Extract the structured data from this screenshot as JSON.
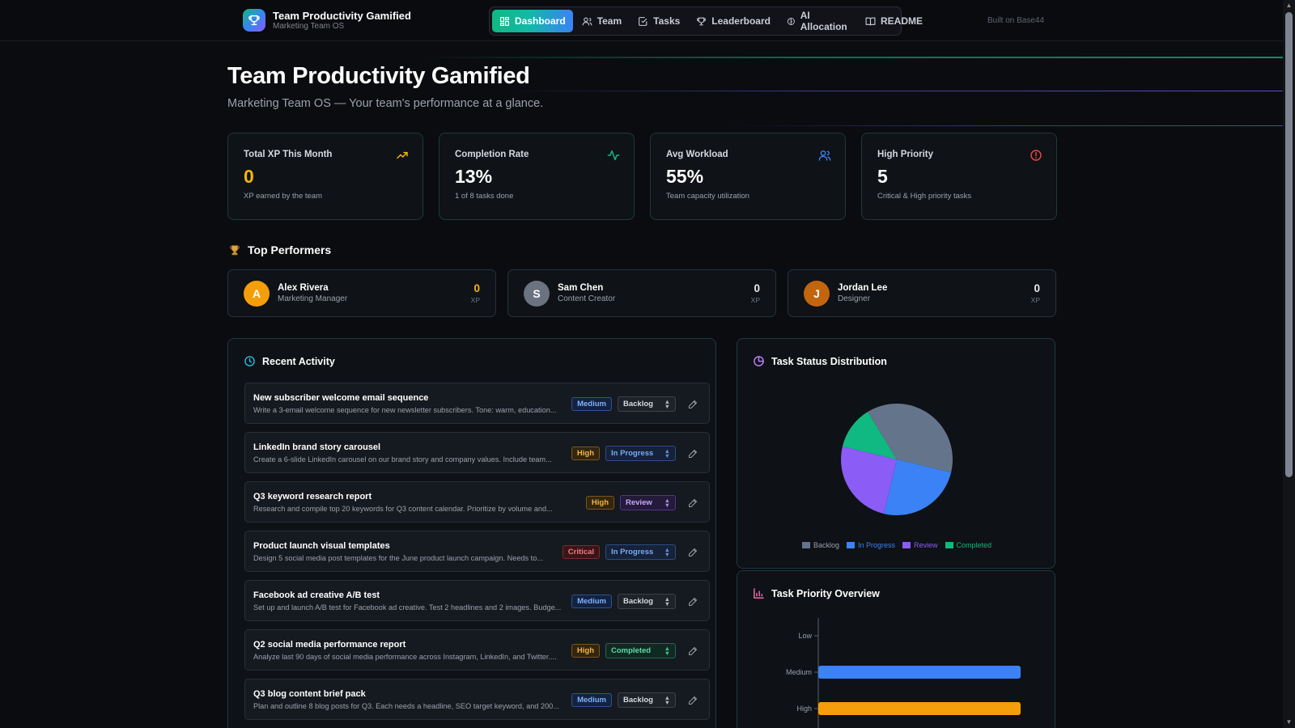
{
  "app": {
    "title": "Team Productivity Gamified",
    "subtitle": "Marketing Team OS",
    "built_on": "Built on Base44"
  },
  "nav": [
    {
      "label": "Dashboard",
      "icon": "dashboard-icon",
      "active": true
    },
    {
      "label": "Team",
      "icon": "users-icon"
    },
    {
      "label": "Tasks",
      "icon": "checkbox-icon"
    },
    {
      "label": "Leaderboard",
      "icon": "trophy-icon"
    },
    {
      "label": "AI Allocation",
      "icon": "brain-icon"
    },
    {
      "label": "README",
      "icon": "book-icon"
    }
  ],
  "header": {
    "title": "Team Productivity Gamified",
    "subtitle": "Marketing Team OS — Your team's performance at a glance."
  },
  "stats": [
    {
      "label": "Total XP This Month",
      "value": "0",
      "desc": "XP earned by the team",
      "icon": "trending-up-icon",
      "color": "#f5b50b"
    },
    {
      "label": "Completion Rate",
      "value": "13%",
      "desc": "1 of 8 tasks done",
      "icon": "activity-icon",
      "color": "#10b981"
    },
    {
      "label": "Avg Workload",
      "value": "55%",
      "desc": "Team capacity utilization",
      "icon": "users-icon",
      "color": "#3b82f6"
    },
    {
      "label": "High Priority",
      "value": "5",
      "desc": "Critical & High priority tasks",
      "icon": "alert-circle-icon",
      "color": "#ef4444"
    }
  ],
  "top_performers": {
    "title": "Top Performers",
    "items": [
      {
        "initial": "A",
        "name": "Alex Rivera",
        "role": "Marketing Manager",
        "xp": "0",
        "unit": "XP",
        "avatar_color": "#f59e0b",
        "xp_color": "#f5b50b"
      },
      {
        "initial": "S",
        "name": "Sam Chen",
        "role": "Content Creator",
        "xp": "0",
        "unit": "XP",
        "avatar_color": "#6b7280",
        "xp_color": "#ffffff"
      },
      {
        "initial": "J",
        "name": "Jordan Lee",
        "role": "Designer",
        "xp": "0",
        "unit": "XP",
        "avatar_color": "#c2650f",
        "xp_color": "#ffffff"
      }
    ]
  },
  "recent_activity": {
    "title": "Recent Activity",
    "tasks": [
      {
        "title": "New subscriber welcome email sequence",
        "desc": "Write a 3-email welcome sequence for new newsletter subscribers. Tone: warm, education...",
        "priority": "Medium",
        "status": "Backlog"
      },
      {
        "title": "LinkedIn brand story carousel",
        "desc": "Create a 6-slide LinkedIn carousel on our brand story and company values. Include team...",
        "priority": "High",
        "status": "In Progress"
      },
      {
        "title": "Q3 keyword research report",
        "desc": "Research and compile top 20 keywords for Q3 content calendar. Prioritize by volume and...",
        "priority": "High",
        "status": "Review"
      },
      {
        "title": "Product launch visual templates",
        "desc": "Design 5 social media post templates for the June product launch campaign. Needs to...",
        "priority": "Critical",
        "status": "In Progress"
      },
      {
        "title": "Facebook ad creative A/B test",
        "desc": "Set up and launch A/B test for Facebook ad creative. Test 2 headlines and 2 images. Budge...",
        "priority": "Medium",
        "status": "Backlog"
      },
      {
        "title": "Q2 social media performance report",
        "desc": "Analyze last 90 days of social media performance across Instagram, LinkedIn, and Twitter....",
        "priority": "High",
        "status": "Completed"
      },
      {
        "title": "Q3 blog content brief pack",
        "desc": "Plan and outline 8 blog posts for Q3. Each needs a headline, SEO target keyword, and 200...",
        "priority": "Medium",
        "status": "Backlog"
      }
    ]
  },
  "chart_data": [
    {
      "type": "pie",
      "title": "Task Status Distribution",
      "categories": [
        "Backlog",
        "In Progress",
        "Review",
        "Completed"
      ],
      "values": [
        3,
        2,
        2,
        1
      ],
      "colors": [
        "#64748b",
        "#3b82f6",
        "#8b5cf6",
        "#10b981"
      ],
      "legend": "bottom"
    },
    {
      "type": "bar",
      "orientation": "horizontal",
      "title": "Task Priority Overview",
      "categories": [
        "Low",
        "Medium",
        "High"
      ],
      "values": [
        0,
        3,
        3
      ],
      "colors": [
        "#3b82f6",
        "#3b82f6",
        "#f59e0b"
      ]
    }
  ]
}
